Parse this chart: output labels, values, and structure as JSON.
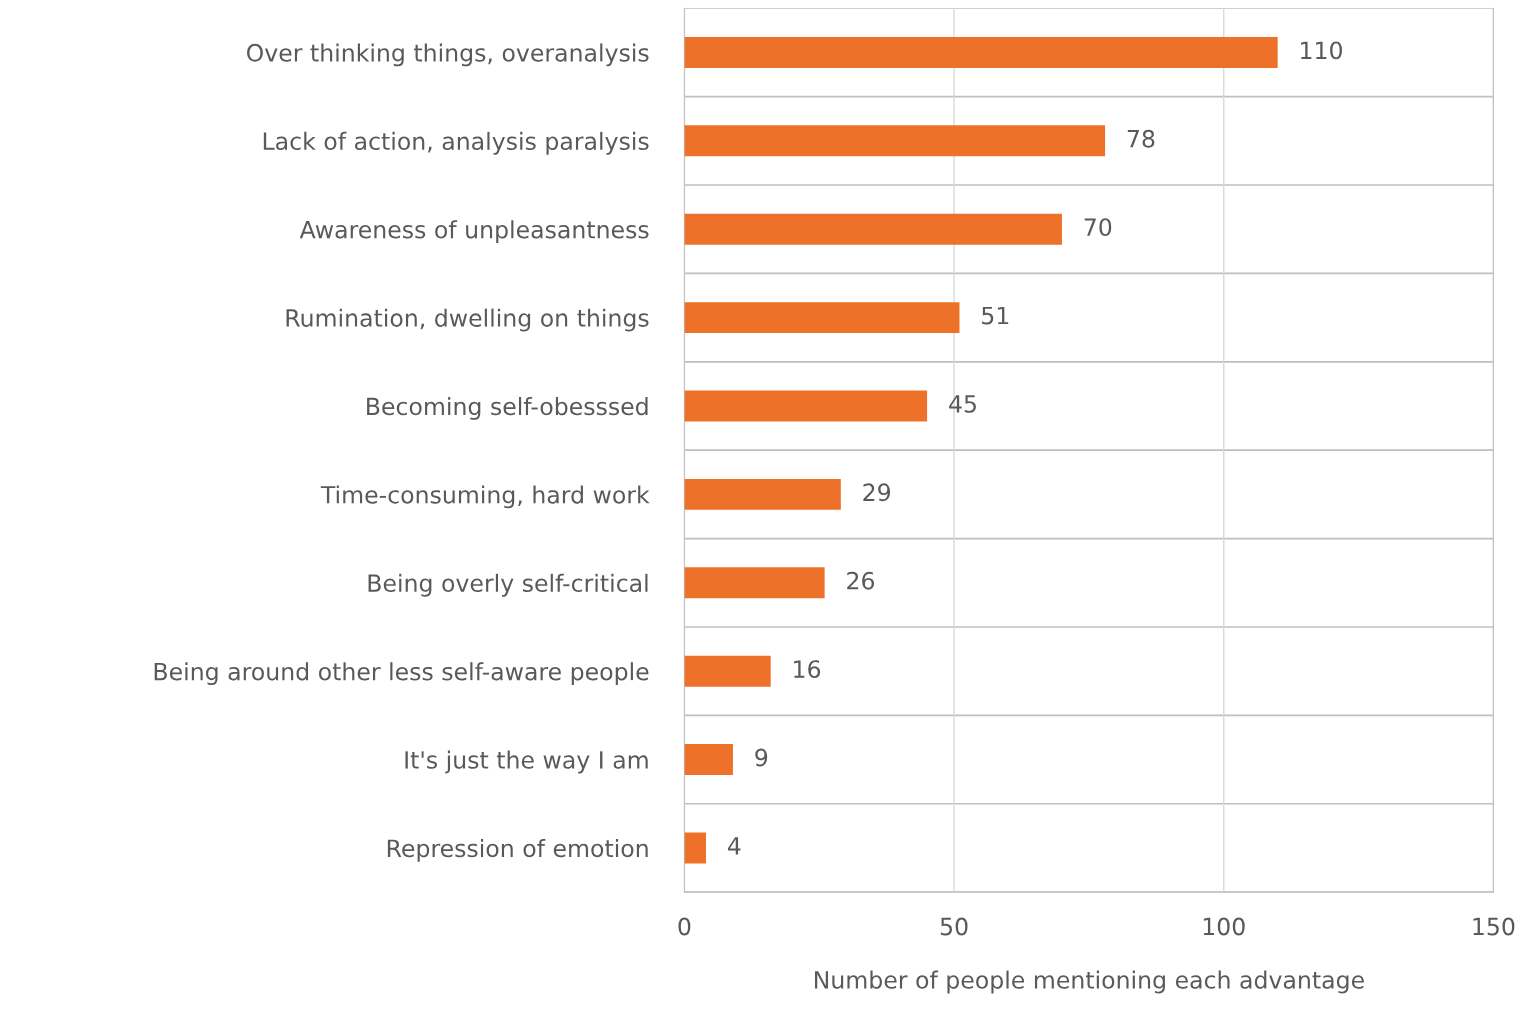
{
  "chart_data": {
    "type": "bar",
    "orientation": "horizontal",
    "categories": [
      "Over thinking things, overanalysis",
      "Lack of action, analysis paralysis",
      "Awareness of unpleasantness",
      "Rumination, dwelling on things",
      "Becoming self-obesssed",
      "Time-consuming, hard work",
      "Being overly self-critical",
      "Being around other less self-aware people",
      "It's just the way I am",
      "Repression of emotion"
    ],
    "values": [
      110,
      78,
      70,
      51,
      45,
      29,
      26,
      16,
      9,
      4
    ],
    "color": "#ed7128",
    "xlabel": "Number of people mentioning each advantage",
    "xlim": [
      0,
      150
    ],
    "xticks": [
      0,
      50,
      100,
      150
    ],
    "grid": true,
    "data_labels": true
  }
}
